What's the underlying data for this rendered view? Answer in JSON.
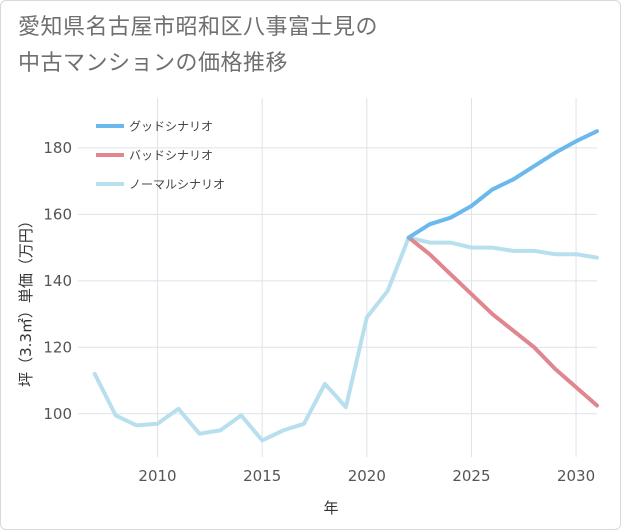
{
  "title": {
    "line1": "愛知県名古屋市昭和区八事富士見の",
    "line2": "中古マンションの価格推移"
  },
  "chart_data": {
    "type": "line",
    "xlabel": "年",
    "ylabel": "坪（3.3㎡）単価（万円）",
    "xlim": [
      2006.2,
      2031
    ],
    "ylim": [
      87,
      195
    ],
    "xticks": [
      2010,
      2015,
      2020,
      2025,
      2030
    ],
    "yticks": [
      100,
      120,
      140,
      160,
      180
    ],
    "grid": true,
    "legend_position": "top-left",
    "series": [
      {
        "name": "グッドシナリオ",
        "color": "#6bb8ed",
        "x": [
          2022,
          2023,
          2024,
          2025,
          2026,
          2027,
          2028,
          2029,
          2030,
          2031
        ],
        "values": [
          153,
          157,
          159,
          162.5,
          167.5,
          170.5,
          174.5,
          178.5,
          182,
          185
        ]
      },
      {
        "name": "バッドシナリオ",
        "color": "#e0868f",
        "x": [
          2022,
          2023,
          2024,
          2025,
          2026,
          2027,
          2028,
          2029,
          2030,
          2031
        ],
        "values": [
          153,
          148,
          142,
          136,
          130,
          125,
          120,
          113.5,
          108,
          102.5
        ]
      },
      {
        "name": "ノーマルシナリオ",
        "color": "#b8dfee",
        "x": [
          2007,
          2008,
          2009,
          2010,
          2011,
          2012,
          2013,
          2014,
          2015,
          2016,
          2017,
          2018,
          2019,
          2020,
          2021,
          2022,
          2023,
          2024,
          2025,
          2026,
          2027,
          2028,
          2029,
          2030,
          2031
        ],
        "values": [
          112,
          99.5,
          96.5,
          97,
          101.5,
          94,
          95,
          99.5,
          92,
          95,
          97,
          109,
          102,
          129,
          137,
          153,
          151.5,
          151.5,
          150,
          150,
          149,
          149,
          148,
          148,
          147
        ]
      }
    ]
  }
}
